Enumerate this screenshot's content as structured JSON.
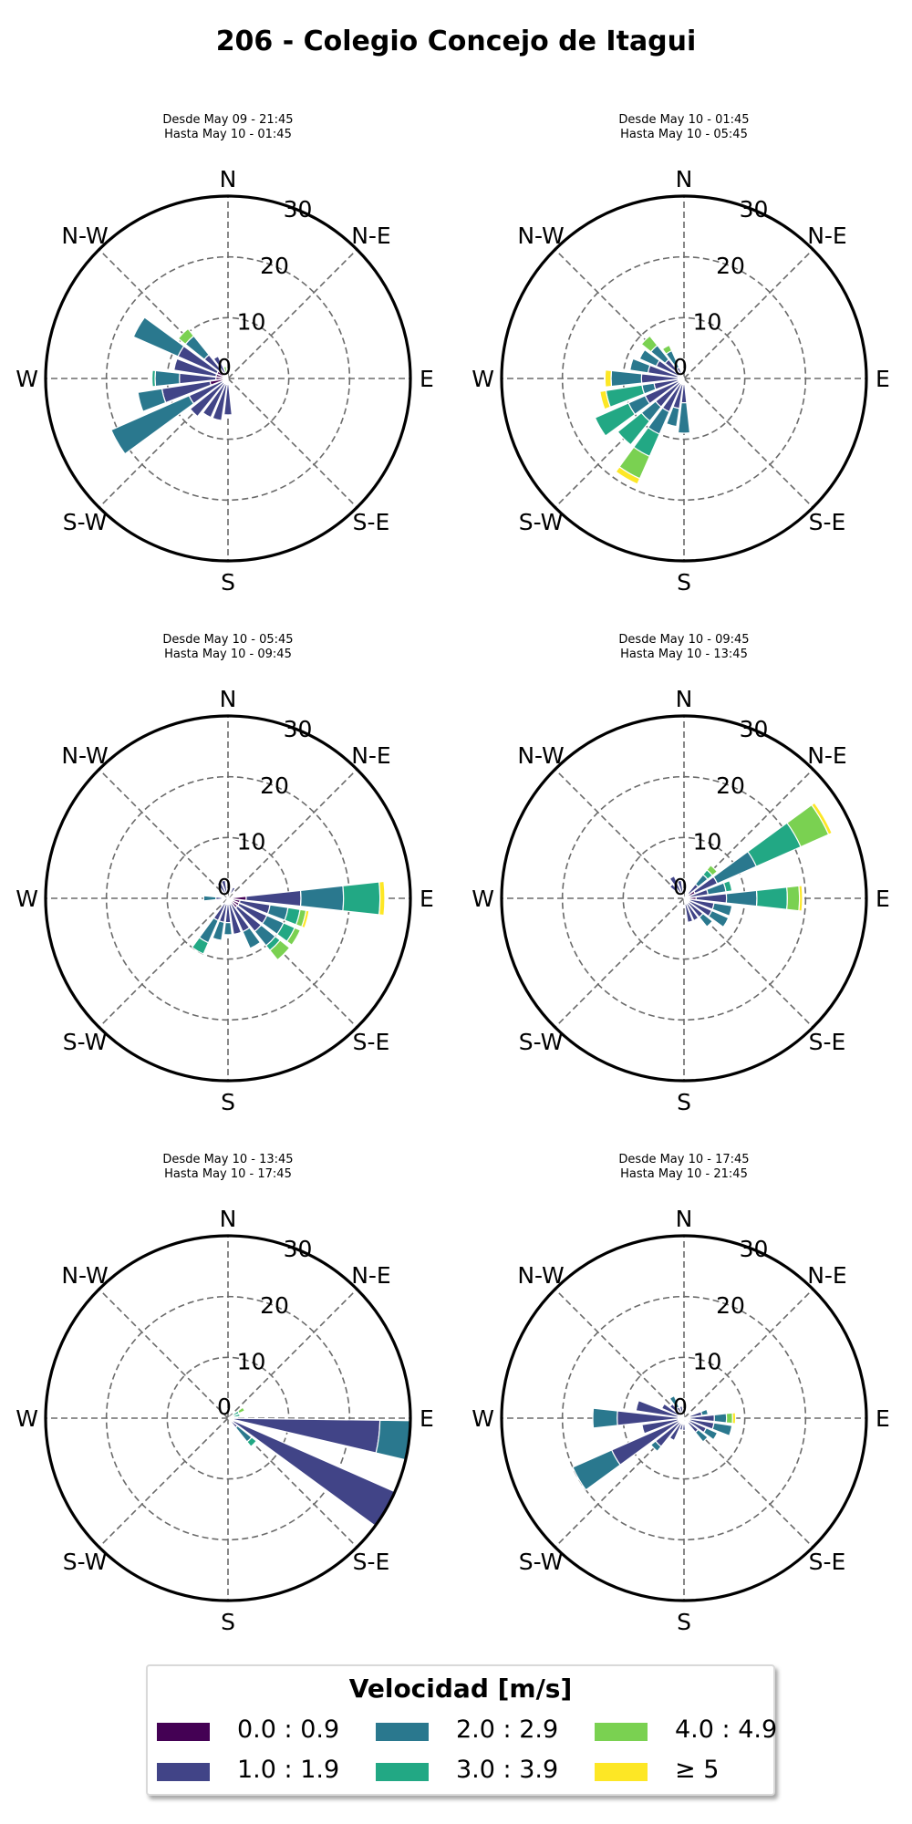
{
  "title": "206 - Colegio Concejo de Itagui",
  "direction_labels": [
    "N",
    "N-E",
    "E",
    "S-E",
    "S",
    "S-W",
    "W",
    "N-W"
  ],
  "ring_labels": [
    "0",
    "10",
    "20",
    "30"
  ],
  "legend": {
    "title": "Velocidad [m/s]",
    "items": [
      {
        "label": "0.0 : 0.9",
        "color": "#440154"
      },
      {
        "label": "1.0 : 1.9",
        "color": "#414487"
      },
      {
        "label": "2.0 : 2.9",
        "color": "#2a788e"
      },
      {
        "label": "3.0 : 3.9",
        "color": "#22a884"
      },
      {
        "label": "4.0 : 4.9",
        "color": "#7ad151"
      },
      {
        "label": "≥ 5",
        "color": "#fde725"
      }
    ]
  },
  "chart_data": [
    {
      "type": "windrose",
      "subtitle_from": "Desde May 09 - 21:45",
      "subtitle_to": "Hasta May 10 - 01:45",
      "rlim": [
        0,
        30
      ],
      "r_ticks": [
        0,
        10,
        20,
        30
      ],
      "bins_deg": [
        270,
        285,
        300,
        315,
        255,
        240,
        225,
        210,
        195,
        180,
        330,
        345
      ],
      "stacks": [
        [
          2,
          6,
          4,
          0.5,
          0,
          0
        ],
        [
          2,
          7,
          0,
          0,
          0,
          0
        ],
        [
          2,
          7,
          8,
          0,
          0,
          0
        ],
        [
          1,
          4,
          4,
          0,
          1.5,
          0
        ],
        [
          3,
          8,
          4,
          0,
          0,
          0
        ],
        [
          1,
          6,
          14,
          0,
          0,
          0
        ],
        [
          1,
          7,
          0,
          0,
          0,
          0
        ],
        [
          1,
          6,
          0,
          0,
          0,
          0
        ],
        [
          1,
          6,
          0,
          0,
          0,
          0
        ],
        [
          1,
          5,
          0,
          0,
          0,
          0
        ],
        [
          1,
          3,
          0,
          0,
          0,
          0
        ],
        [
          0,
          0,
          0,
          1,
          1,
          0
        ]
      ]
    },
    {
      "type": "windrose",
      "subtitle_from": "Desde May 10 - 01:45",
      "subtitle_to": "Hasta May 10 - 05:45",
      "rlim": [
        0,
        30
      ],
      "r_ticks": [
        0,
        10,
        20,
        30
      ],
      "bins_deg": [
        270,
        285,
        300,
        315,
        255,
        240,
        225,
        210,
        195,
        180,
        330
      ],
      "stacks": [
        [
          1,
          6,
          5,
          0,
          0,
          1
        ],
        [
          1,
          5,
          3,
          0,
          0,
          0
        ],
        [
          1,
          4,
          3,
          0,
          0,
          0
        ],
        [
          1,
          3,
          3,
          0,
          2,
          0
        ],
        [
          1,
          4,
          2,
          6,
          0,
          1
        ],
        [
          1,
          6,
          3,
          6,
          0,
          0
        ],
        [
          1,
          5,
          3,
          5,
          0,
          0
        ],
        [
          1,
          5,
          4,
          4,
          4,
          1
        ],
        [
          1,
          4,
          3,
          0,
          0,
          0
        ],
        [
          1,
          3,
          5,
          0,
          0,
          0
        ],
        [
          0,
          2,
          3,
          0,
          1,
          0
        ]
      ]
    },
    {
      "type": "windrose",
      "subtitle_from": "Desde May 10 - 05:45",
      "subtitle_to": "Hasta May 10 - 09:45",
      "rlim": [
        0,
        30
      ],
      "r_ticks": [
        0,
        10,
        20,
        30
      ],
      "bins_deg": [
        90,
        105,
        120,
        135,
        150,
        165,
        180,
        195,
        210,
        270,
        330,
        345,
        30
      ],
      "stacks": [
        [
          3,
          9,
          7,
          6,
          0,
          0.8
        ],
        [
          2,
          5,
          3,
          2,
          1,
          0.5
        ],
        [
          2,
          5,
          3,
          2,
          1,
          0
        ],
        [
          2,
          5,
          3,
          1,
          2,
          0
        ],
        [
          1,
          5,
          3,
          0,
          0,
          0
        ],
        [
          1,
          5,
          0,
          0,
          0,
          0
        ],
        [
          1,
          3,
          2,
          0,
          0,
          0
        ],
        [
          1,
          3,
          3,
          0,
          0,
          0
        ],
        [
          1,
          3,
          4,
          2,
          0,
          0
        ],
        [
          1,
          1,
          2,
          0,
          0,
          0
        ],
        [
          1,
          2,
          0,
          0,
          0,
          0
        ],
        [
          1,
          2,
          0,
          0,
          0,
          0
        ],
        [
          1,
          1,
          0,
          0,
          0,
          0
        ]
      ]
    },
    {
      "type": "windrose",
      "subtitle_from": "Desde May 10 - 09:45",
      "subtitle_to": "Hasta May 10 - 13:45",
      "rlim": [
        0,
        30
      ],
      "r_ticks": [
        0,
        10,
        20,
        30
      ],
      "bins_deg": [
        60,
        75,
        45,
        90,
        105,
        120,
        135,
        150,
        165,
        330,
        345,
        315
      ],
      "stacks": [
        [
          2,
          4,
          7,
          8,
          5,
          0.6
        ],
        [
          1,
          3,
          3,
          1,
          0,
          0
        ],
        [
          1,
          2,
          2,
          1,
          1,
          0
        ],
        [
          2,
          5,
          5,
          5,
          2,
          0.5
        ],
        [
          1,
          4,
          3,
          0,
          0,
          0
        ],
        [
          1,
          4,
          3,
          0,
          0,
          0
        ],
        [
          1,
          3,
          2,
          0,
          0,
          0
        ],
        [
          1,
          3,
          0,
          0,
          0,
          0
        ],
        [
          1,
          3,
          0,
          0,
          0,
          0
        ],
        [
          1,
          3,
          0,
          0,
          0,
          0
        ],
        [
          1,
          2,
          0,
          0,
          0,
          0
        ],
        [
          1,
          2,
          0,
          0,
          0,
          0
        ]
      ]
    },
    {
      "type": "windrose",
      "subtitle_from": "Desde May 10 - 13:45",
      "subtitle_to": "Hasta May 10 - 17:45",
      "rlim": [
        0,
        30
      ],
      "r_ticks": [
        0,
        10,
        20,
        30
      ],
      "bins_deg": [
        97,
        120,
        135,
        60,
        75
      ],
      "stacks": [
        [
          1,
          24,
          5.5,
          0,
          0,
          0
        ],
        [
          1,
          29,
          0,
          0,
          0,
          0
        ],
        [
          0,
          2,
          3,
          1,
          0,
          0
        ],
        [
          0,
          1,
          0,
          1,
          1,
          0
        ],
        [
          0,
          1,
          0,
          1,
          0,
          0
        ]
      ]
    },
    {
      "type": "windrose",
      "subtitle_from": "Desde May 10 - 17:45",
      "subtitle_to": "Hasta May 10 - 21:45",
      "rlim": [
        0,
        30
      ],
      "r_ticks": [
        0,
        10,
        20,
        30
      ],
      "bins_deg": [
        270,
        285,
        300,
        315,
        330,
        345,
        255,
        240,
        225,
        210,
        195,
        180,
        90,
        105,
        120,
        135,
        75
      ],
      "stacks": [
        [
          1,
          10,
          4,
          0,
          0,
          0
        ],
        [
          1,
          7,
          0,
          0,
          0,
          0
        ],
        [
          1,
          3,
          0,
          0,
          0,
          0
        ],
        [
          1,
          2,
          0,
          0,
          0,
          0
        ],
        [
          1,
          1,
          2,
          0,
          0,
          0
        ],
        [
          1,
          1,
          0,
          0,
          0,
          0
        ],
        [
          1,
          6,
          0,
          0,
          0,
          0
        ],
        [
          1,
          12,
          7,
          0,
          0,
          0
        ],
        [
          1,
          5,
          1,
          0,
          0,
          0
        ],
        [
          1,
          3,
          0,
          0,
          0,
          0
        ],
        [
          1,
          1,
          0,
          0,
          0,
          0
        ],
        [
          1,
          1,
          0,
          0,
          0,
          0
        ],
        [
          1,
          4,
          2,
          0,
          1,
          0.5
        ],
        [
          1,
          4,
          3,
          0,
          0,
          0
        ],
        [
          1,
          3,
          2,
          0,
          0,
          0
        ],
        [
          1,
          2,
          2,
          0,
          0,
          0
        ],
        [
          1,
          2,
          1,
          0,
          0,
          0
        ]
      ]
    }
  ]
}
